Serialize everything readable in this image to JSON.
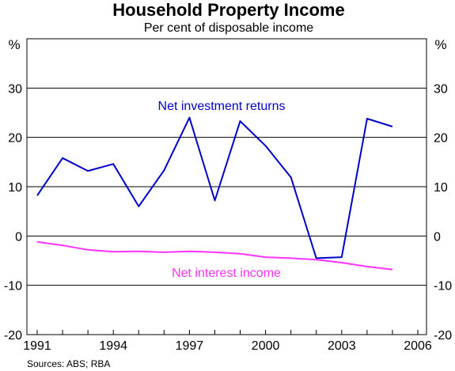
{
  "chart_data": {
    "type": "line",
    "title": "Household Property Income",
    "subtitle": "Per cent of disposable income",
    "unit_left": "%",
    "unit_right": "%",
    "source": "Sources: ABS; RBA",
    "x_range": [
      1991,
      2006
    ],
    "x_ticks": [
      1991,
      1994,
      1997,
      2000,
      2003,
      2006
    ],
    "x_tick_labels": [
      "1991",
      "1994",
      "1997",
      "2000",
      "2003",
      "2006"
    ],
    "ylim": [
      -20,
      40
    ],
    "y_ticks": [
      -20,
      -10,
      0,
      10,
      20,
      30
    ],
    "y_tick_labels": [
      "-20",
      "-10",
      "0",
      "10",
      "20",
      "30"
    ],
    "grid": "horizontal",
    "series": [
      {
        "name": "Net investment returns",
        "color": "#0000cc",
        "x": [
          1991,
          1992,
          1993,
          1994,
          1995,
          1996,
          1997,
          1998,
          1999,
          2000,
          2001,
          2002,
          2003,
          2004,
          2005
        ],
        "values": [
          8.2,
          15.8,
          13.2,
          14.6,
          6.0,
          13.3,
          24.0,
          7.2,
          23.3,
          18.3,
          11.9,
          -4.5,
          -4.3,
          23.8,
          22.2
        ]
      },
      {
        "name": "Net interest income",
        "color": "#ff33ff",
        "x": [
          1991,
          1992,
          1993,
          1994,
          1995,
          1996,
          1997,
          1998,
          1999,
          2000,
          2001,
          2002,
          2003,
          2004,
          2005
        ],
        "values": [
          -1.2,
          -1.9,
          -2.8,
          -3.2,
          -3.1,
          -3.3,
          -3.1,
          -3.3,
          -3.6,
          -4.3,
          -4.5,
          -4.8,
          -5.4,
          -6.2,
          -6.8
        ]
      }
    ]
  }
}
